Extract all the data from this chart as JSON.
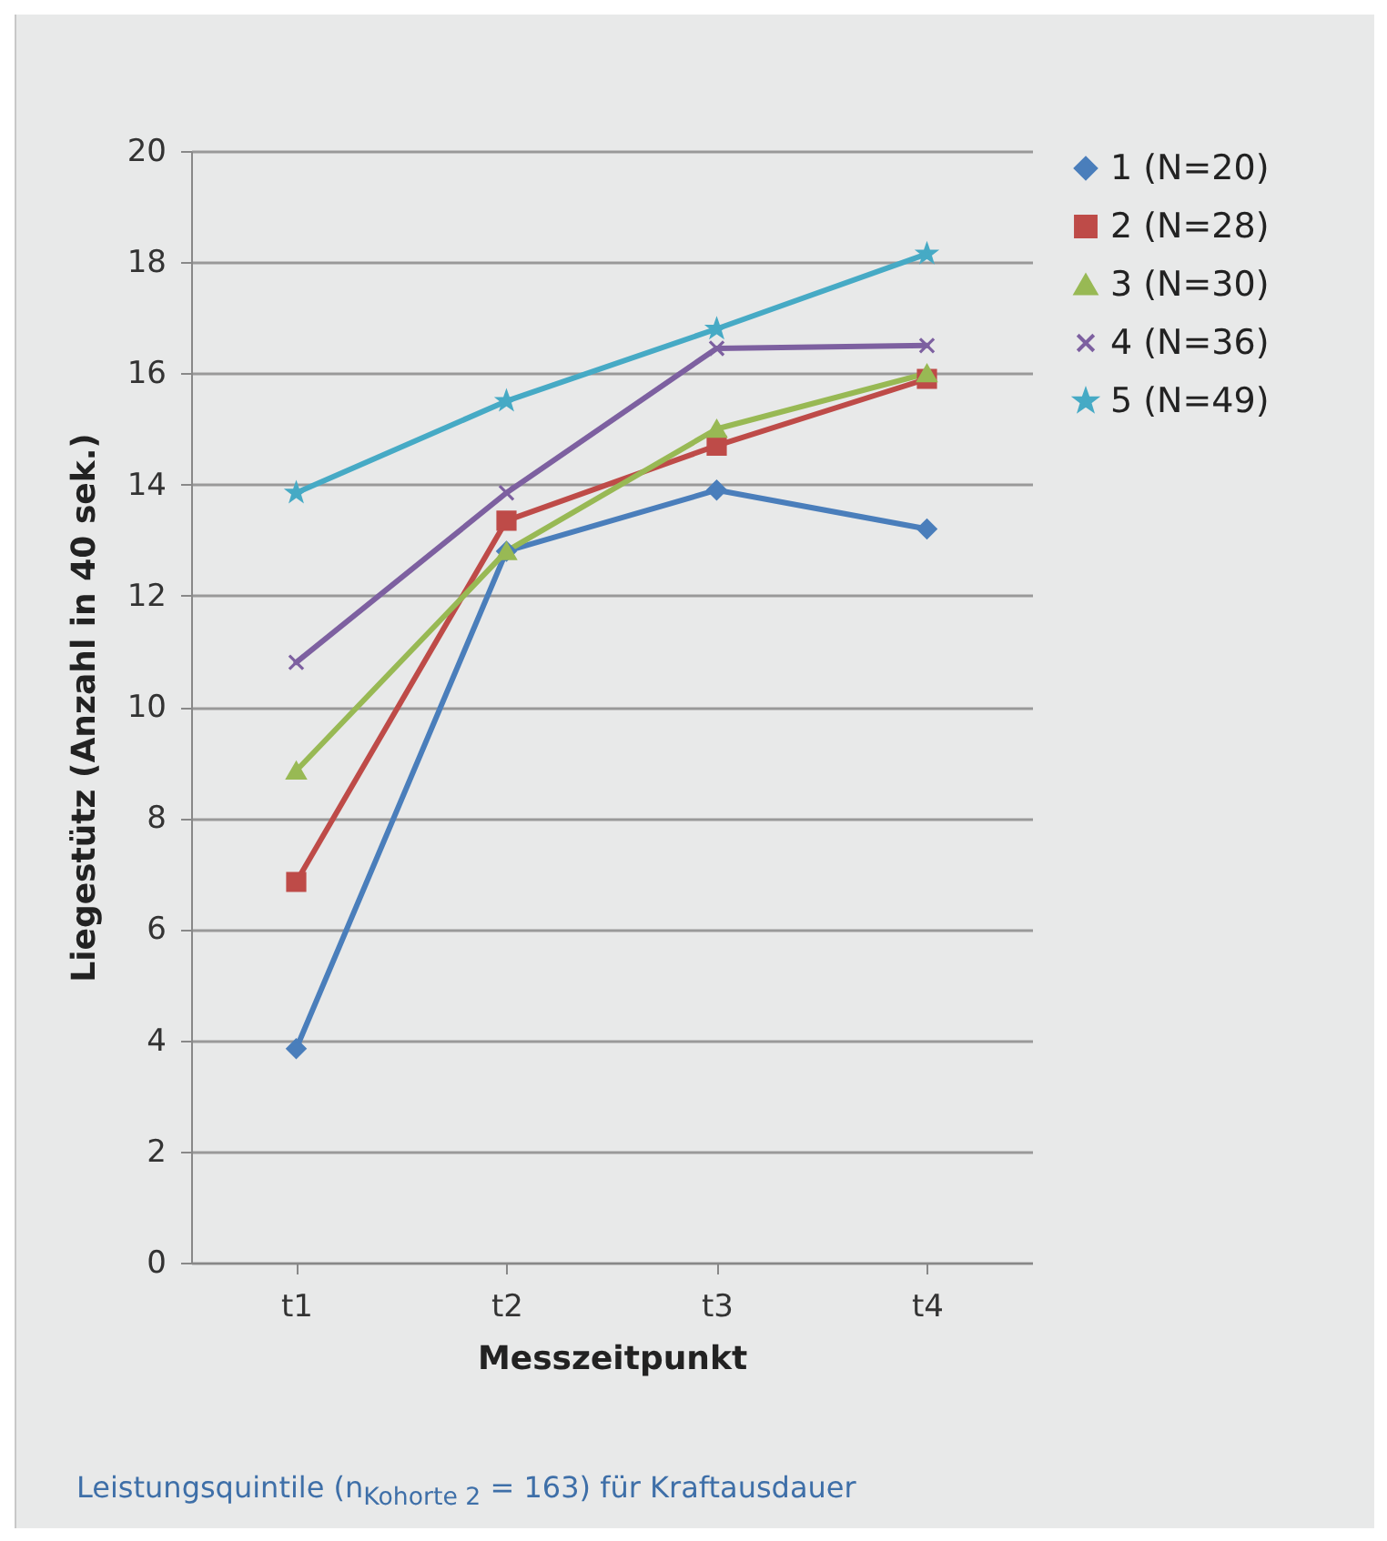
{
  "chart_data": {
    "type": "line",
    "xlabel": "Messzeitpunkt",
    "ylabel": "Liegestütz (Anzahl in 40 sek.)",
    "categories": [
      "t1",
      "t2",
      "t3",
      "t4"
    ],
    "series": [
      {
        "name": "1 (N=20)",
        "color": "#4a7ebb",
        "marker": "diamond",
        "values": [
          3.85,
          12.8,
          13.9,
          13.2
        ]
      },
      {
        "name": "2 (N=28)",
        "color": "#be4b48",
        "marker": "square",
        "values": [
          6.85,
          13.35,
          14.7,
          15.9
        ]
      },
      {
        "name": "3 (N=30)",
        "color": "#98b954",
        "marker": "triangle",
        "values": [
          8.85,
          12.8,
          15.0,
          16.0
        ]
      },
      {
        "name": "4 (N=36)",
        "color": "#7d60a0",
        "marker": "cross",
        "values": [
          10.8,
          13.85,
          16.45,
          16.5
        ]
      },
      {
        "name": "5 (N=49)",
        "color": "#46aac5",
        "marker": "star",
        "values": [
          13.85,
          15.5,
          16.8,
          18.15
        ]
      }
    ],
    "ylim": [
      0,
      20
    ],
    "yticks": [
      0,
      2,
      4,
      6,
      8,
      10,
      12,
      14,
      16,
      18,
      20
    ],
    "grid": "y",
    "legend": "right",
    "annotations": [
      "Leistungsquintile (n$_{Kohorte 2}$ = 163) für Kraftausdauer"
    ]
  }
}
